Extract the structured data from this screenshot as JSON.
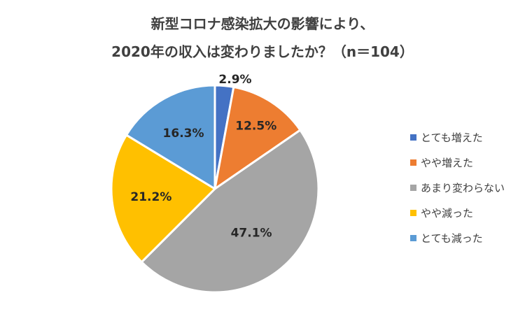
{
  "chart_data": {
    "type": "pie",
    "title_line1": "新型コロナ感染拡大の影響により、",
    "title_line2": "2020年の収入は変わりましたか？（n＝104）",
    "categories": [
      "とても増えた",
      "やや増えた",
      "あまり変わらない",
      "やや減った",
      "とても減った"
    ],
    "values": [
      2.9,
      12.5,
      47.1,
      21.2,
      16.3
    ],
    "labels": [
      "2.9%",
      "12.5%",
      "47.1%",
      "21.2%",
      "16.3%"
    ],
    "colors": [
      "#4472C4",
      "#ED7D31",
      "#A5A5A5",
      "#FFC000",
      "#5B9BD5"
    ],
    "legend_position": "right",
    "start_angle": "12 o'clock",
    "direction": "clockwise"
  }
}
